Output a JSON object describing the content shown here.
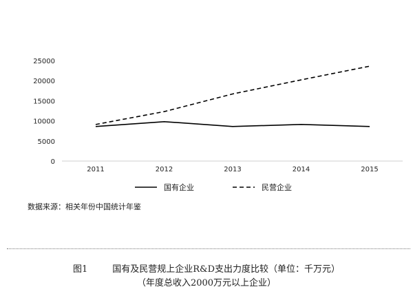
{
  "chart_data": {
    "type": "line",
    "x": [
      "2011",
      "2012",
      "2013",
      "2014",
      "2015"
    ],
    "series": [
      {
        "name": "国有企业",
        "values": [
          8600,
          9800,
          8600,
          9100,
          8600
        ],
        "style": "solid",
        "color": "#000000"
      },
      {
        "name": "民营企业",
        "values": [
          9100,
          12300,
          16700,
          20200,
          23600
        ],
        "style": "dashed",
        "color": "#000000"
      }
    ],
    "yticks": [
      0,
      5000,
      10000,
      15000,
      20000,
      25000
    ],
    "ylim": [
      0,
      25000
    ],
    "grid": false,
    "legend": "bottom",
    "source": "数据来源：相关年份中国统计年鉴"
  },
  "caption": {
    "fig_label": "图1",
    "title": "国有及民营规上企业R&D支出力度比较（单位：千万元）",
    "subtitle": "（年度总收入2000万元以上企业）"
  }
}
